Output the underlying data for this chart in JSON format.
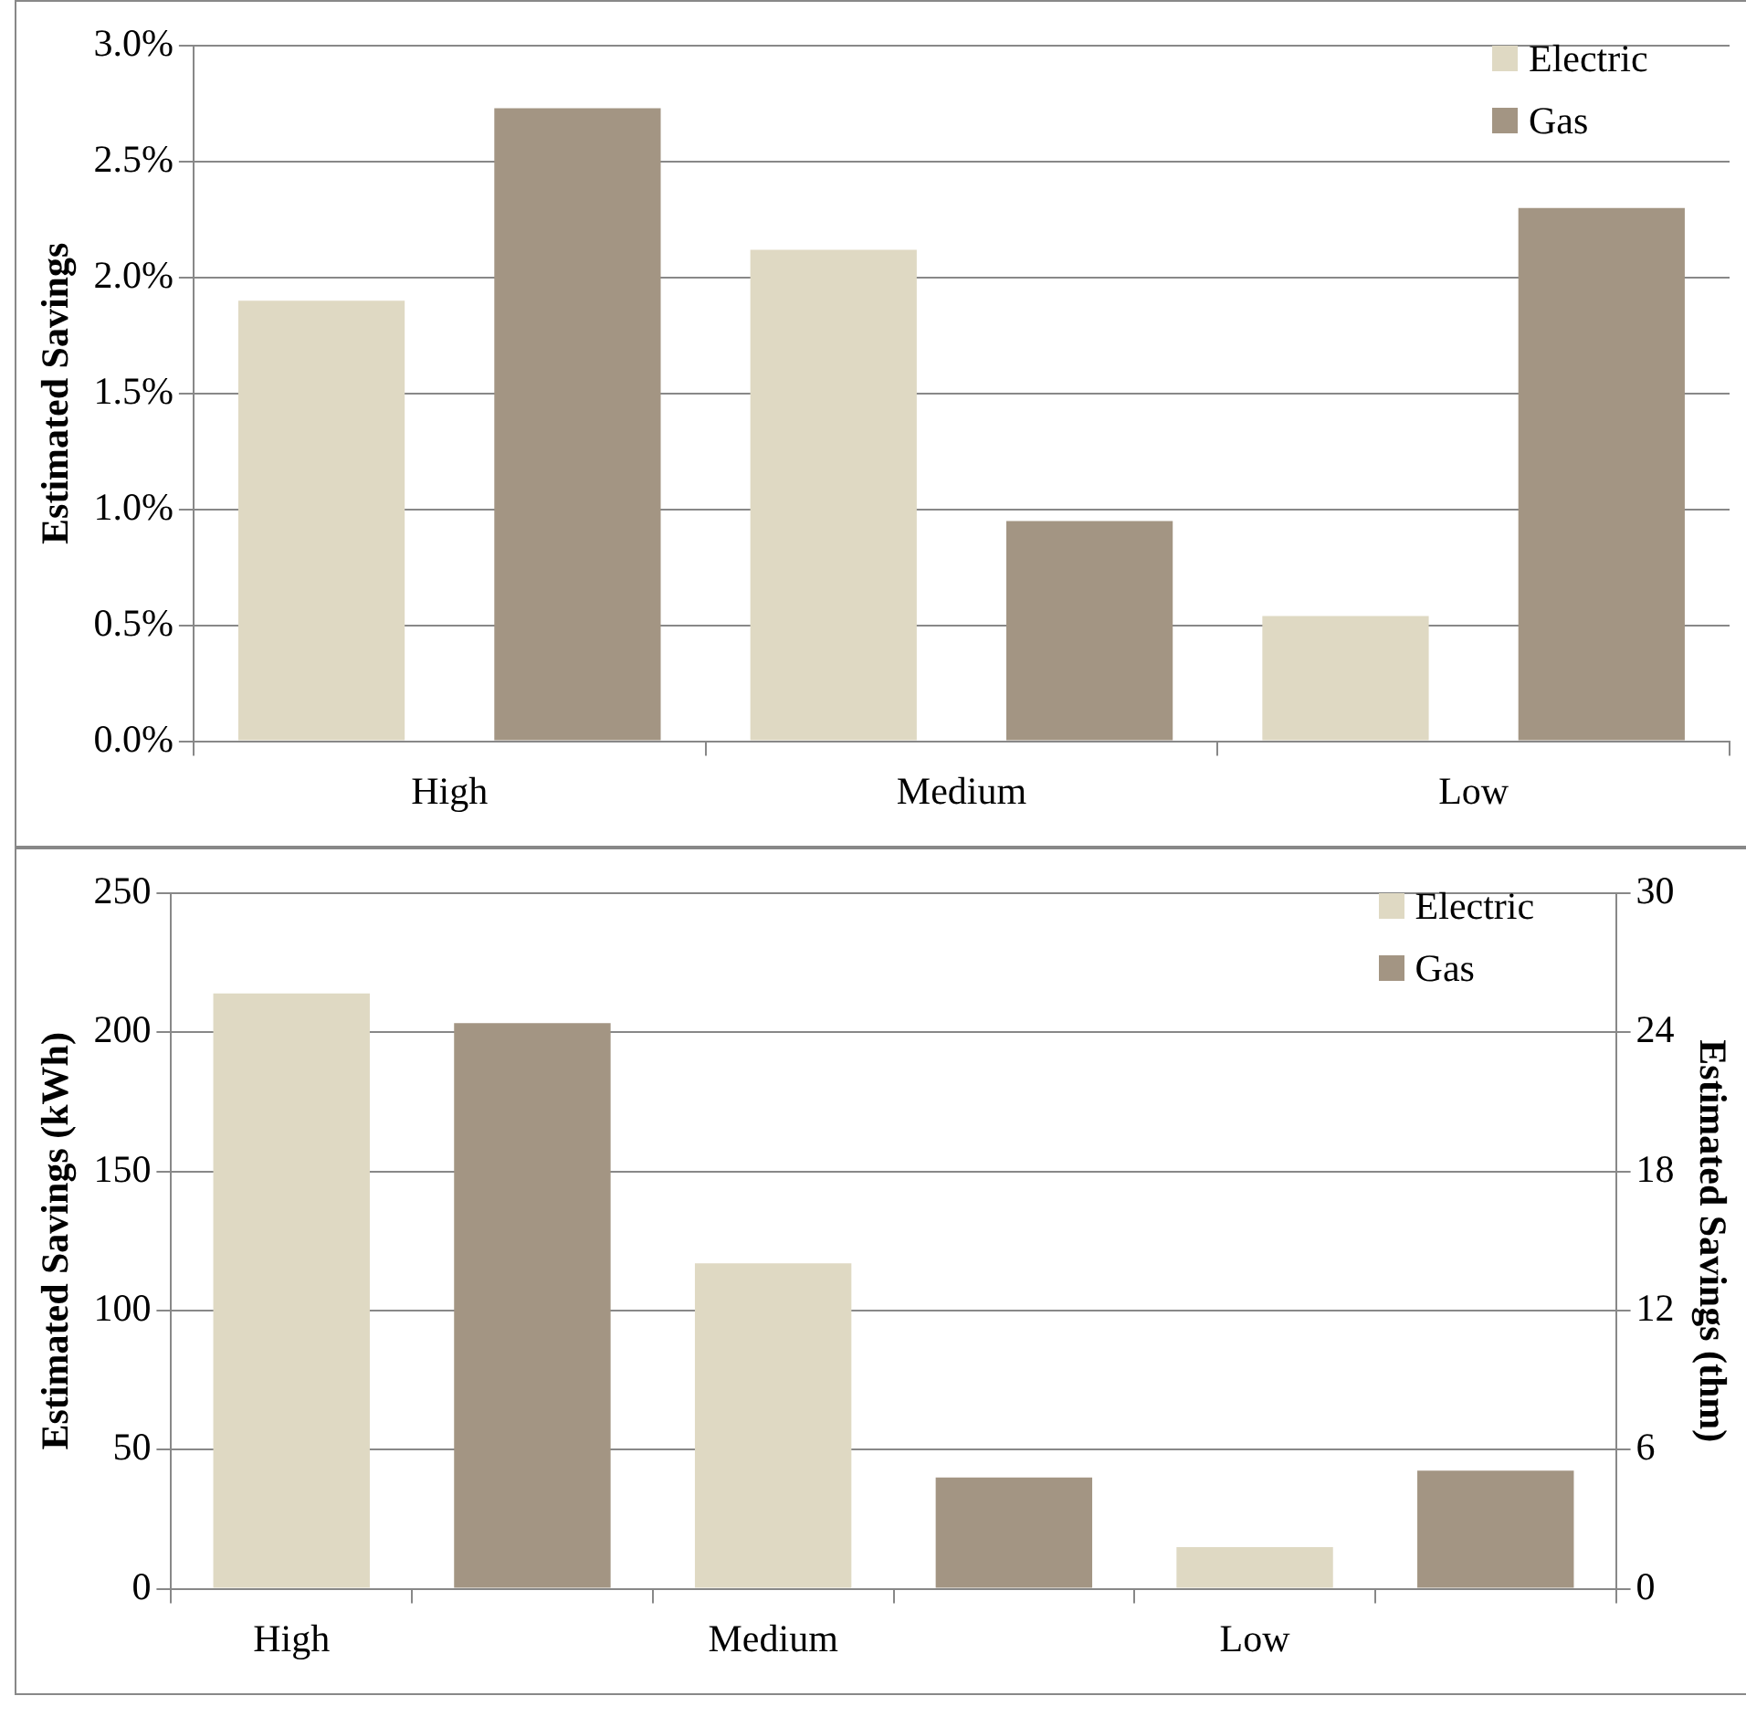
{
  "chart_data": [
    {
      "type": "bar",
      "ylabel": "Estimated Savings",
      "categories": [
        "High",
        "Medium",
        "Low"
      ],
      "series": [
        {
          "name": "Electric",
          "color": "#dfd9c3",
          "values": [
            1.9,
            2.12,
            0.54
          ]
        },
        {
          "name": "Gas",
          "color": "#a39583",
          "values": [
            2.73,
            0.95,
            2.3
          ]
        }
      ],
      "ylim": [
        0,
        3
      ],
      "yticks": [
        {
          "value": 0,
          "label": "0.0%"
        },
        {
          "value": 0.5,
          "label": "0.5%"
        },
        {
          "value": 1,
          "label": "1.0%"
        },
        {
          "value": 1.5,
          "label": "1.5%"
        },
        {
          "value": 2,
          "label": "2.0%"
        },
        {
          "value": 2.5,
          "label": "2.5%"
        },
        {
          "value": 3,
          "label": "3.0%"
        }
      ],
      "grid": "y",
      "legend": "top right"
    },
    {
      "type": "bar",
      "ylabel": "Estimated Savings (kWh)",
      "y2label": "Estimated Savings (thm)",
      "categories": [
        "High",
        null,
        "Medium",
        null,
        "Low",
        null
      ],
      "series": [
        {
          "name": "Electric",
          "color": "#dfd9c3",
          "values": [
            214,
            null,
            117,
            null,
            15,
            null
          ]
        },
        {
          "name": "Gas",
          "color": "#a39583",
          "axis": "y2",
          "values": [
            null,
            24.4,
            null,
            4.8,
            null,
            5.1
          ]
        }
      ],
      "ylim": [
        0,
        250
      ],
      "yticks": [
        0,
        50,
        100,
        150,
        200,
        250
      ],
      "y2lim": [
        0,
        30
      ],
      "y2ticks": [
        0,
        6,
        12,
        18,
        24,
        30
      ],
      "grid": "y",
      "legend": "top right"
    }
  ]
}
